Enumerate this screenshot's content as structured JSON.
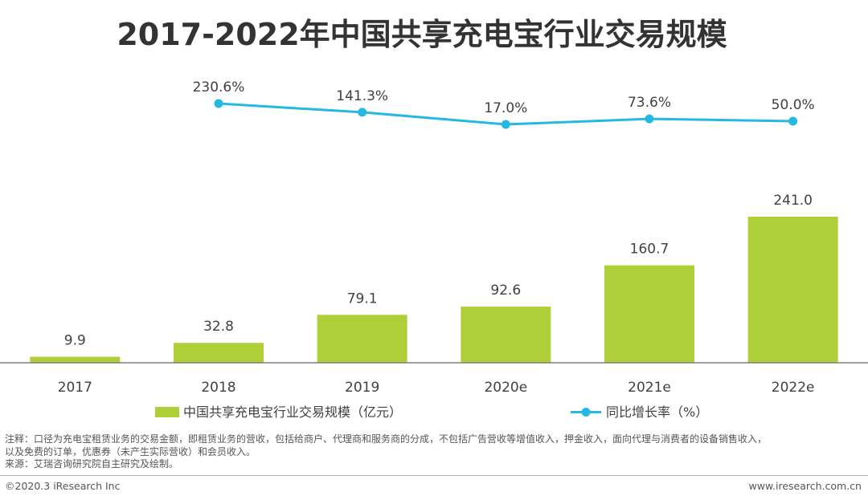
{
  "chart_data": {
    "type": "bar",
    "title": "2017-2022年中国共享充电宝行业交易规模",
    "categories": [
      "2017",
      "2018",
      "2019",
      "2020e",
      "2021e",
      "2022e"
    ],
    "series": [
      {
        "name": "中国共享充电宝行业交易规模（亿元）",
        "kind": "bar",
        "values": [
          9.9,
          32.8,
          79.1,
          92.6,
          160.7,
          241.0
        ],
        "labels": [
          "9.9",
          "32.8",
          "79.1",
          "92.6",
          "160.7",
          "241.0"
        ]
      },
      {
        "name": "同比增长率（%）",
        "kind": "line",
        "values": [
          null,
          230.6,
          141.3,
          17.0,
          73.6,
          50.0
        ],
        "labels": [
          "",
          "230.6%",
          "141.3%",
          "17.0%",
          "73.6%",
          "50.0%"
        ]
      }
    ],
    "ylim_bar": [
      0,
      241
    ],
    "ylim_line": [
      17,
      230.6
    ],
    "legend_position": "bottom-center",
    "grid": false
  },
  "colors": {
    "bar": "#afcf38",
    "line": "#25b8e0",
    "axis": "#7f7f7f"
  },
  "notes": {
    "line1": "注释：口径为充电宝租赁业务的交易金额，即租赁业务的营收，包括给商户、代理商和服务商的分成，不包括广告营收等增值收入，押金收入，面向代理与消费者的设备销售收入，",
    "line2": "以及免费的订单，优惠券（未产生实际营收）和会员收入。",
    "line3": "来源：艾瑞咨询研究院自主研究及绘制。"
  },
  "footer": {
    "copyright": "©2020.3 iResearch Inc",
    "website": "www.iresearch.com.cn"
  }
}
